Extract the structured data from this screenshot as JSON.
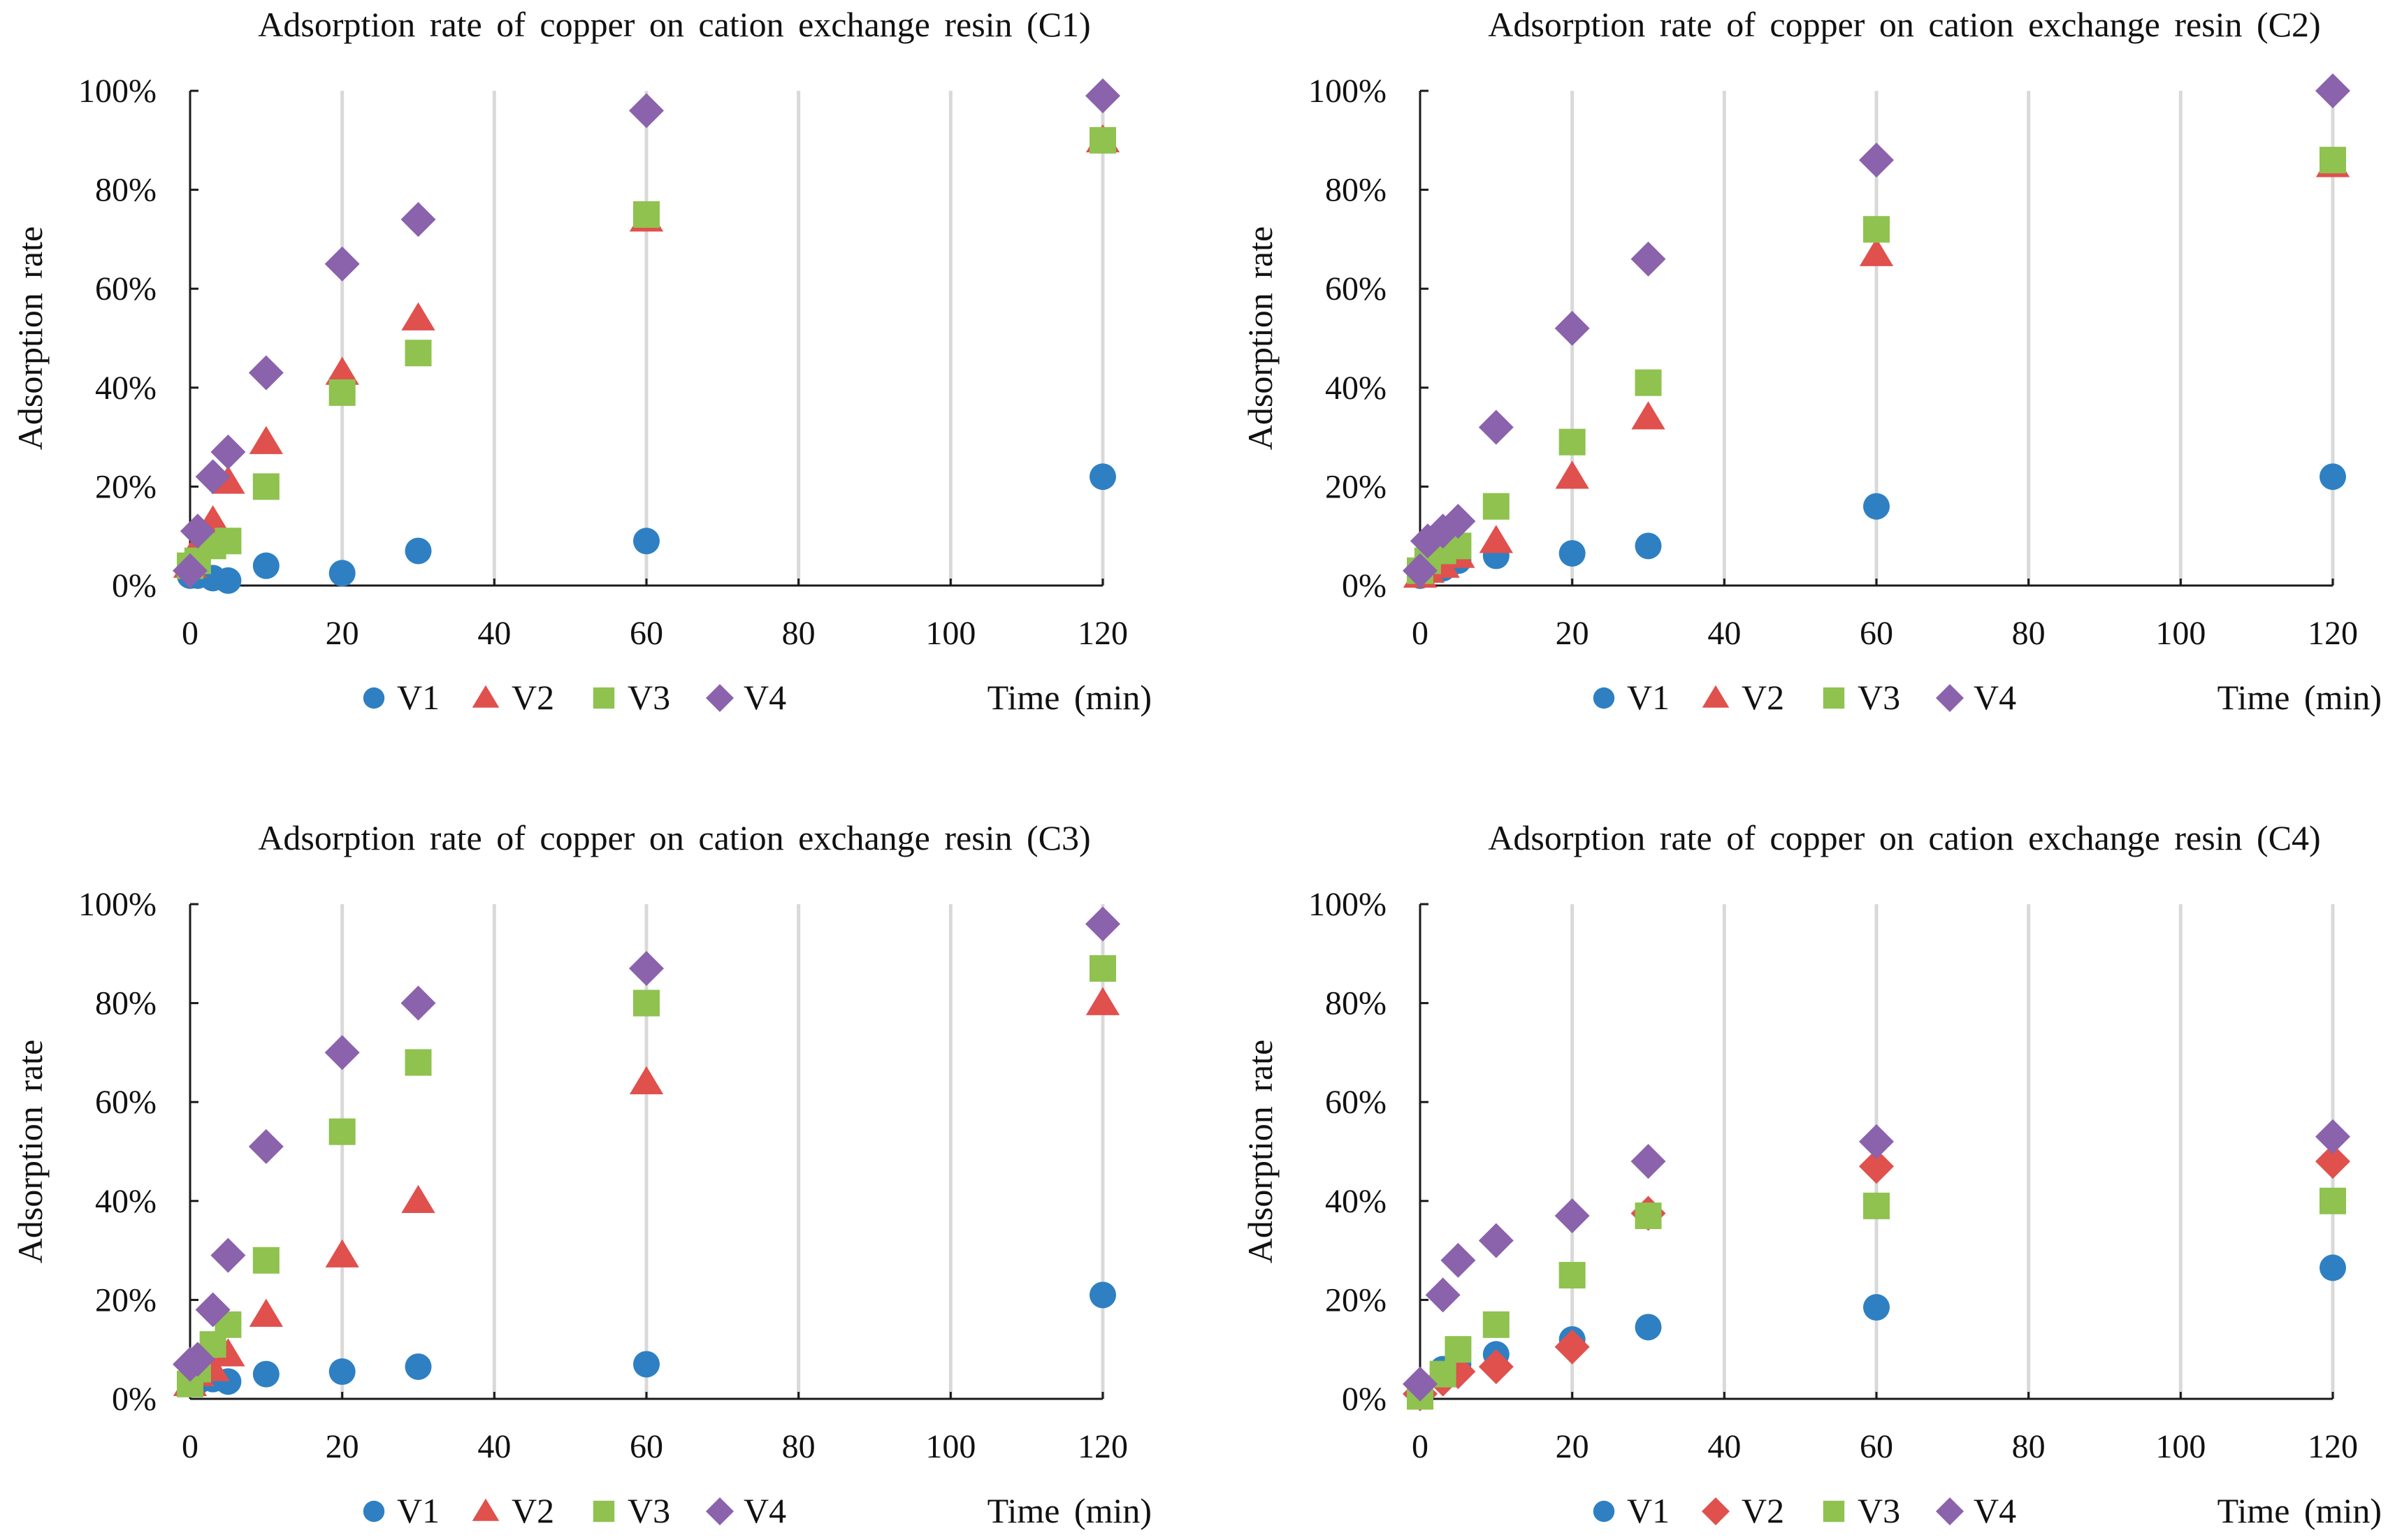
{
  "colors": {
    "V1": "#2E80C3",
    "V2": "#E0504D",
    "V3": "#8FC24F",
    "V4": "#8B62AC",
    "grid": "#d9d9d9",
    "axis": "#1a1a1a"
  },
  "legend_labels": [
    "V1",
    "V2",
    "V3",
    "V4"
  ],
  "chart_data": [
    {
      "type": "scatter",
      "title": "Adsorption rate of copper on cation exchange resin (C1)",
      "xlabel": "Time (min)",
      "ylabel": "Adsorption rate",
      "xlim": [
        0,
        120
      ],
      "ylim": [
        0,
        1
      ],
      "x_ticks": [
        "0",
        "20",
        "40",
        "60",
        "80",
        "100",
        "120"
      ],
      "y_ticks": [
        "0%",
        "20%",
        "40%",
        "60%",
        "80%",
        "100%"
      ],
      "grid": "vertical",
      "legend": "bottom",
      "series": [
        {
          "name": "V1",
          "marker": "circle",
          "x": [
            0,
            1,
            3,
            5,
            10,
            20,
            30,
            60,
            120
          ],
          "y": [
            0.02,
            0.02,
            0.015,
            0.01,
            0.04,
            0.025,
            0.07,
            0.09,
            0.22
          ]
        },
        {
          "name": "V2",
          "marker": "triangle",
          "x": [
            0,
            1,
            3,
            5,
            10,
            20,
            30,
            60,
            120
          ],
          "y": [
            0.04,
            0.08,
            0.13,
            0.21,
            0.29,
            0.43,
            0.54,
            0.74,
            0.9
          ]
        },
        {
          "name": "V3",
          "marker": "square",
          "x": [
            0,
            1,
            3,
            5,
            10,
            20,
            30,
            60,
            120
          ],
          "y": [
            0.04,
            0.05,
            0.08,
            0.09,
            0.2,
            0.39,
            0.47,
            0.75,
            0.9
          ]
        },
        {
          "name": "V4",
          "marker": "diamond",
          "x": [
            0,
            1,
            3,
            5,
            10,
            20,
            30,
            60,
            120
          ],
          "y": [
            0.03,
            0.11,
            0.22,
            0.27,
            0.43,
            0.65,
            0.74,
            0.96,
            0.99
          ]
        }
      ]
    },
    {
      "type": "scatter",
      "title": "Adsorption rate of copper on cation exchange resin (C2)",
      "xlabel": "Time (min)",
      "ylabel": "Adsorption rate",
      "xlim": [
        0,
        120
      ],
      "ylim": [
        0,
        1
      ],
      "x_ticks": [
        "0",
        "20",
        "40",
        "60",
        "80",
        "100",
        "120"
      ],
      "y_ticks": [
        "0%",
        "20%",
        "40%",
        "60%",
        "80%",
        "100%"
      ],
      "grid": "vertical",
      "legend": "bottom",
      "series": [
        {
          "name": "V1",
          "marker": "circle",
          "x": [
            0,
            1,
            3,
            5,
            10,
            20,
            30,
            60,
            120
          ],
          "y": [
            0.02,
            0.03,
            0.035,
            0.05,
            0.06,
            0.065,
            0.08,
            0.16,
            0.22
          ]
        },
        {
          "name": "V2",
          "marker": "triangle",
          "x": [
            0,
            1,
            3,
            5,
            10,
            20,
            30,
            60,
            120
          ],
          "y": [
            0.02,
            0.03,
            0.04,
            0.06,
            0.09,
            0.22,
            0.34,
            0.67,
            0.85
          ]
        },
        {
          "name": "V3",
          "marker": "square",
          "x": [
            0,
            1,
            3,
            5,
            10,
            20,
            30,
            60,
            120
          ],
          "y": [
            0.03,
            0.05,
            0.07,
            0.08,
            0.16,
            0.29,
            0.41,
            0.72,
            0.86
          ]
        },
        {
          "name": "V4",
          "marker": "diamond",
          "x": [
            0,
            1,
            3,
            5,
            10,
            20,
            30,
            60,
            120
          ],
          "y": [
            0.03,
            0.09,
            0.11,
            0.13,
            0.32,
            0.52,
            0.66,
            0.86,
            1.0
          ]
        }
      ]
    },
    {
      "type": "scatter",
      "title": "Adsorption rate of copper on cation exchange resin (C3)",
      "xlabel": "Time (min)",
      "ylabel": "Adsorption rate",
      "xlim": [
        0,
        120
      ],
      "ylim": [
        0,
        1
      ],
      "x_ticks": [
        "0",
        "20",
        "40",
        "60",
        "80",
        "100",
        "120"
      ],
      "y_ticks": [
        "0%",
        "20%",
        "40%",
        "60%",
        "80%",
        "100%"
      ],
      "grid": "vertical",
      "legend": "bottom",
      "series": [
        {
          "name": "V1",
          "marker": "circle",
          "x": [
            0,
            1,
            3,
            5,
            10,
            20,
            30,
            60,
            120
          ],
          "y": [
            0.03,
            0.035,
            0.04,
            0.035,
            0.05,
            0.055,
            0.065,
            0.07,
            0.21
          ]
        },
        {
          "name": "V2",
          "marker": "triangle",
          "x": [
            0,
            1,
            3,
            5,
            10,
            20,
            30,
            60,
            120
          ],
          "y": [
            0.03,
            0.05,
            0.06,
            0.09,
            0.17,
            0.29,
            0.4,
            0.64,
            0.8
          ]
        },
        {
          "name": "V3",
          "marker": "square",
          "x": [
            0,
            1,
            3,
            5,
            10,
            20,
            30,
            60,
            120
          ],
          "y": [
            0.03,
            0.06,
            0.11,
            0.15,
            0.28,
            0.54,
            0.68,
            0.8,
            0.87
          ]
        },
        {
          "name": "V4",
          "marker": "diamond",
          "x": [
            0,
            1,
            3,
            5,
            10,
            20,
            30,
            60,
            120
          ],
          "y": [
            0.07,
            0.08,
            0.18,
            0.29,
            0.51,
            0.7,
            0.8,
            0.87,
            0.96
          ]
        }
      ]
    },
    {
      "type": "scatter",
      "title": "Adsorption rate of copper on cation exchange resin (C4)",
      "xlabel": "Time (min)",
      "ylabel": "Adsorption rate",
      "xlim": [
        0,
        120
      ],
      "ylim": [
        0,
        1
      ],
      "x_ticks": [
        "0",
        "20",
        "40",
        "60",
        "80",
        "100",
        "120"
      ],
      "y_ticks": [
        "0%",
        "20%",
        "40%",
        "60%",
        "80%",
        "100%"
      ],
      "grid": "vertical",
      "legend": "bottom",
      "series": [
        {
          "name": "V1",
          "marker": "circle",
          "x": [
            0,
            3,
            5,
            10,
            20,
            30,
            60,
            120
          ],
          "y": [
            0.02,
            0.06,
            0.07,
            0.09,
            0.12,
            0.145,
            0.185,
            0.265
          ]
        },
        {
          "name": "V2",
          "marker": "diamond",
          "x": [
            0,
            3,
            5,
            10,
            20,
            30,
            60,
            120
          ],
          "y": [
            0.01,
            0.04,
            0.055,
            0.065,
            0.105,
            0.375,
            0.47,
            0.48
          ]
        },
        {
          "name": "V3",
          "marker": "square",
          "x": [
            0,
            3,
            5,
            10,
            20,
            30,
            60,
            120
          ],
          "y": [
            0.005,
            0.05,
            0.1,
            0.15,
            0.25,
            0.37,
            0.39,
            0.4
          ]
        },
        {
          "name": "V4",
          "marker": "diamond",
          "x": [
            0,
            3,
            5,
            10,
            20,
            30,
            60,
            120
          ],
          "y": [
            0.03,
            0.21,
            0.28,
            0.32,
            0.37,
            0.48,
            0.52,
            0.53
          ]
        }
      ]
    }
  ]
}
